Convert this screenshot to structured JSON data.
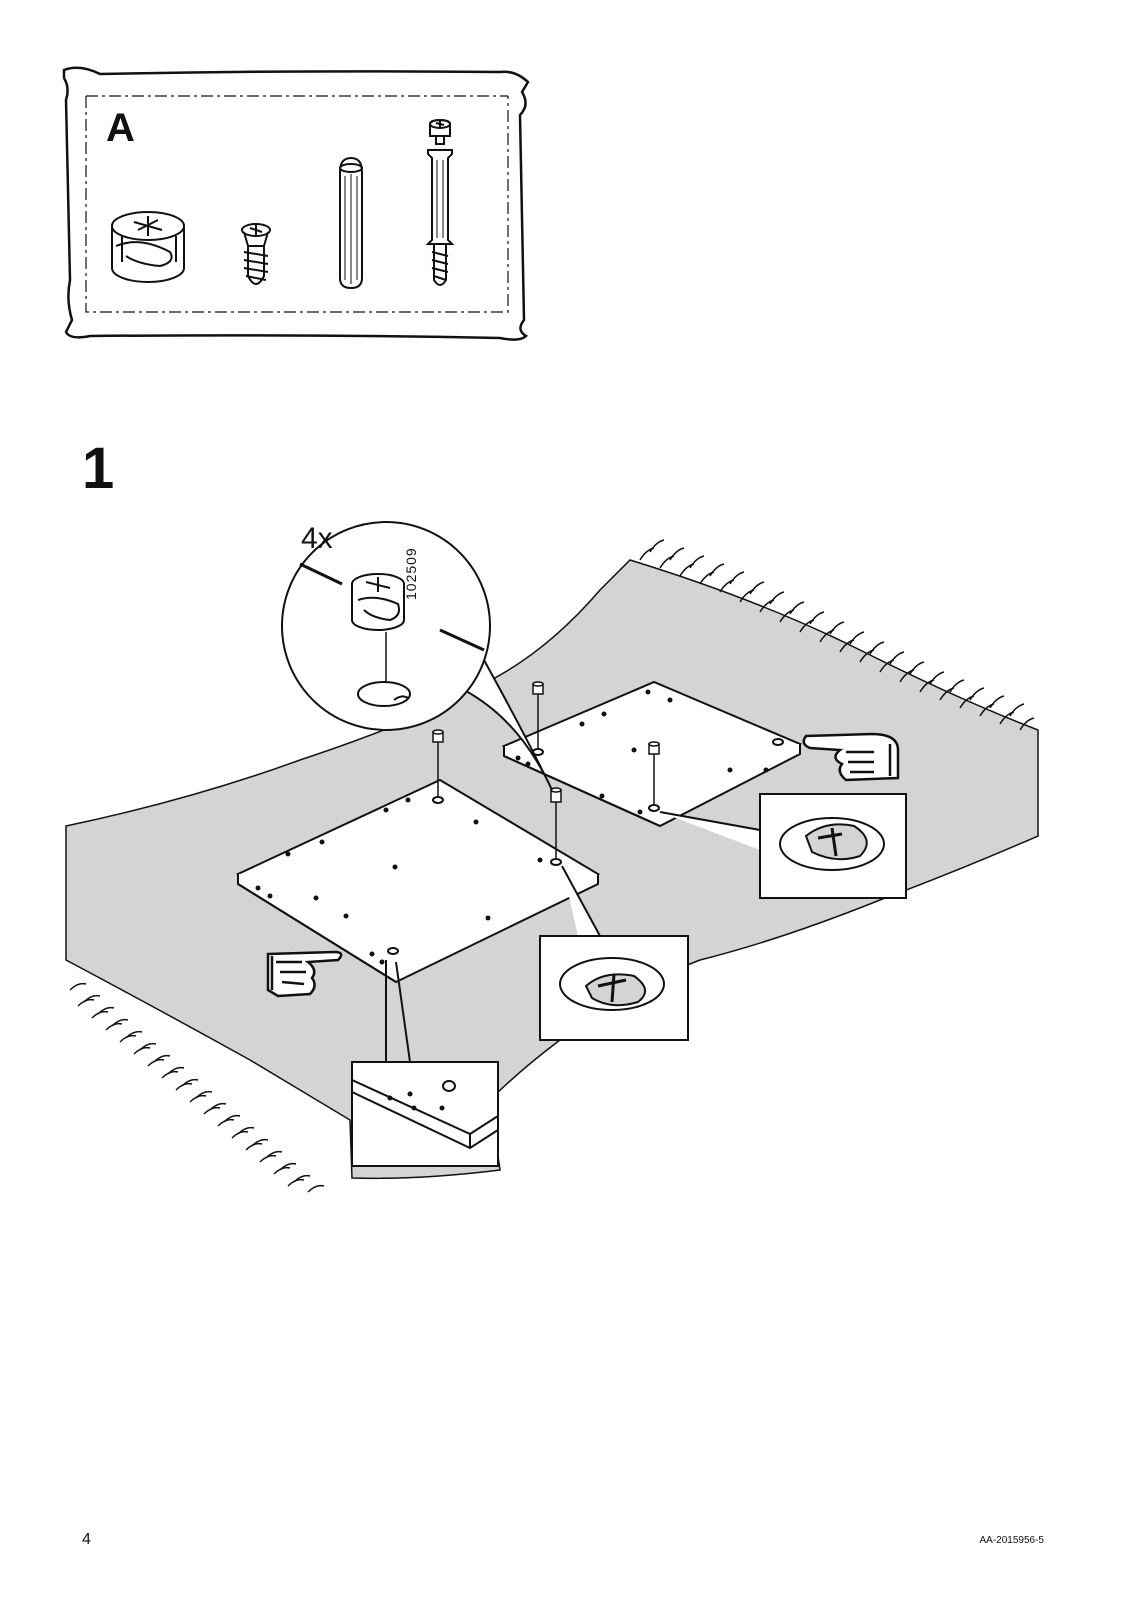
{
  "kit": {
    "letter": "A"
  },
  "step": {
    "number": "1",
    "quantity": "4x",
    "part_number": "102509"
  },
  "footer": {
    "page_number": "4",
    "document_code": "AA-2015956-5"
  },
  "colors": {
    "line": "#111111",
    "floor": "#d4d4d4",
    "paper": "#ffffff"
  },
  "icons": [
    "hardware-bag",
    "cam-lock-nut",
    "screw",
    "wooden-dowel",
    "cam-lock-bolt",
    "pointing-hand",
    "magnifier-callout"
  ]
}
